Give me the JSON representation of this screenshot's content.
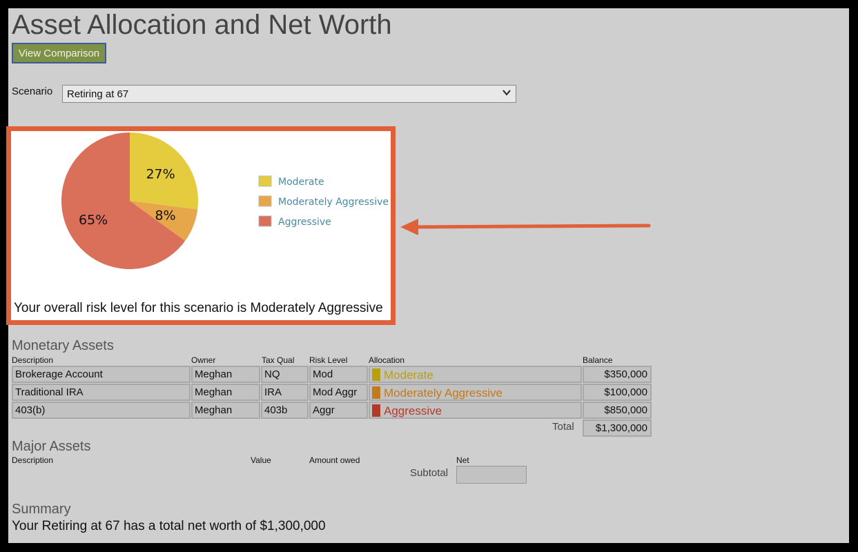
{
  "page": {
    "title": "Asset Allocation and Net Worth",
    "view_button": "View Comparison"
  },
  "scenario": {
    "label": "Scenario",
    "selected": "Retiring at 67"
  },
  "risk_chart": {
    "slices": [
      {
        "name": "Moderate",
        "label": "27%",
        "value": 27,
        "color": "#e5cc3f"
      },
      {
        "name": "Moderately Aggressive",
        "label": "8%",
        "value": 8,
        "color": "#e7a64a"
      },
      {
        "name": "Aggressive",
        "label": "65%",
        "value": 65,
        "color": "#da705a"
      }
    ],
    "legend": [
      {
        "label": "Moderate",
        "color": "#e5cc3f"
      },
      {
        "label": "Moderately Aggressive",
        "color": "#e7a64a"
      },
      {
        "label": "Aggressive",
        "color": "#da705a"
      }
    ],
    "risk_text": "Your overall risk level for this scenario is Moderately Aggressive"
  },
  "chart_data": {
    "type": "pie",
    "categories": [
      "Moderate",
      "Moderately Aggressive",
      "Aggressive"
    ],
    "values": [
      27,
      8,
      65
    ],
    "labels": [
      "27%",
      "8%",
      "65%"
    ],
    "title": ""
  },
  "monetary_assets": {
    "title": "Monetary Assets",
    "headers": {
      "description": "Description",
      "owner": "Owner",
      "tax_qual": "Tax Qual",
      "risk_level": "Risk Level",
      "allocation": "Allocation",
      "balance": "Balance"
    },
    "rows": [
      {
        "description": "Brokerage Account",
        "owner": "Meghan",
        "tax_qual": "NQ",
        "risk_level": "Mod",
        "allocation": "Moderate",
        "alloc_color": "#b9a10e",
        "balance": "$350,000"
      },
      {
        "description": "Traditional IRA",
        "owner": "Meghan",
        "tax_qual": "IRA",
        "risk_level": "Mod Aggr",
        "allocation": "Moderately Aggressive",
        "alloc_color": "#c27a1a",
        "balance": "$100,000"
      },
      {
        "description": "403(b)",
        "owner": "Meghan",
        "tax_qual": "403b",
        "risk_level": "Aggr",
        "allocation": "Aggressive",
        "alloc_color": "#b23a2a",
        "balance": "$850,000"
      }
    ],
    "total_label": "Total",
    "total_value": "$1,300,000"
  },
  "major_assets": {
    "title": "Major Assets",
    "headers": {
      "description": "Description",
      "value": "Value",
      "amount_owed": "Amount owed",
      "net": "Net"
    },
    "subtotal_label": "Subtotal"
  },
  "summary": {
    "title": "Summary",
    "text": "Your Retiring at 67 has a total net worth of $1,300,000"
  },
  "colors": {
    "highlight_border": "#e0603a",
    "button_bg": "#7d9246"
  }
}
